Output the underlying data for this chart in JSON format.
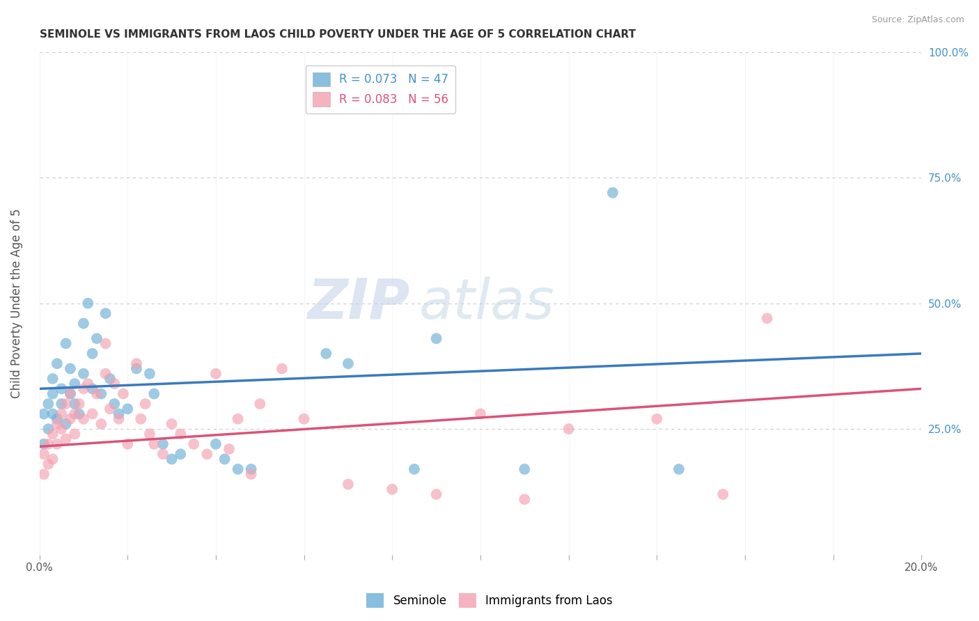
{
  "title": "SEMINOLE VS IMMIGRANTS FROM LAOS CHILD POVERTY UNDER THE AGE OF 5 CORRELATION CHART",
  "source": "Source: ZipAtlas.com",
  "ylabel": "Child Poverty Under the Age of 5",
  "xlim": [
    0.0,
    0.2
  ],
  "ylim": [
    0.0,
    1.0
  ],
  "xticks": [
    0.0,
    0.02,
    0.04,
    0.06,
    0.08,
    0.1,
    0.12,
    0.14,
    0.16,
    0.18,
    0.2
  ],
  "xticklabels": [
    "0.0%",
    "",
    "",
    "",
    "",
    "",
    "",
    "",
    "",
    "",
    "20.0%"
  ],
  "yticks_right": [
    0.0,
    0.25,
    0.5,
    0.75,
    1.0
  ],
  "yticklabels_right": [
    "",
    "25.0%",
    "50.0%",
    "75.0%",
    "100.0%"
  ],
  "seminole_R": 0.073,
  "seminole_N": 47,
  "laos_R": 0.083,
  "laos_N": 56,
  "seminole_color": "#6baed6",
  "laos_color": "#f4a0b0",
  "trend_seminole_color": "#3a7abf",
  "trend_laos_color": "#d9537a",
  "seminole_x": [
    0.001,
    0.001,
    0.002,
    0.002,
    0.003,
    0.003,
    0.003,
    0.004,
    0.004,
    0.005,
    0.005,
    0.006,
    0.006,
    0.007,
    0.007,
    0.008,
    0.008,
    0.009,
    0.01,
    0.01,
    0.011,
    0.012,
    0.012,
    0.013,
    0.014,
    0.015,
    0.016,
    0.017,
    0.018,
    0.02,
    0.022,
    0.025,
    0.026,
    0.028,
    0.03,
    0.032,
    0.04,
    0.042,
    0.045,
    0.048,
    0.065,
    0.07,
    0.085,
    0.09,
    0.11,
    0.13,
    0.145
  ],
  "seminole_y": [
    0.28,
    0.22,
    0.3,
    0.25,
    0.32,
    0.28,
    0.35,
    0.27,
    0.38,
    0.3,
    0.33,
    0.26,
    0.42,
    0.32,
    0.37,
    0.3,
    0.34,
    0.28,
    0.46,
    0.36,
    0.5,
    0.4,
    0.33,
    0.43,
    0.32,
    0.48,
    0.35,
    0.3,
    0.28,
    0.29,
    0.37,
    0.36,
    0.32,
    0.22,
    0.19,
    0.2,
    0.22,
    0.19,
    0.17,
    0.17,
    0.4,
    0.38,
    0.17,
    0.43,
    0.17,
    0.72,
    0.17
  ],
  "laos_x": [
    0.001,
    0.001,
    0.002,
    0.002,
    0.003,
    0.003,
    0.004,
    0.004,
    0.005,
    0.005,
    0.006,
    0.006,
    0.007,
    0.007,
    0.008,
    0.008,
    0.009,
    0.01,
    0.01,
    0.011,
    0.012,
    0.013,
    0.014,
    0.015,
    0.015,
    0.016,
    0.017,
    0.018,
    0.019,
    0.02,
    0.022,
    0.023,
    0.024,
    0.025,
    0.026,
    0.028,
    0.03,
    0.032,
    0.035,
    0.038,
    0.04,
    0.043,
    0.045,
    0.048,
    0.05,
    0.055,
    0.06,
    0.07,
    0.08,
    0.09,
    0.1,
    0.11,
    0.12,
    0.14,
    0.155,
    0.165
  ],
  "laos_y": [
    0.2,
    0.16,
    0.22,
    0.18,
    0.24,
    0.19,
    0.26,
    0.22,
    0.28,
    0.25,
    0.3,
    0.23,
    0.32,
    0.27,
    0.28,
    0.24,
    0.3,
    0.33,
    0.27,
    0.34,
    0.28,
    0.32,
    0.26,
    0.42,
    0.36,
    0.29,
    0.34,
    0.27,
    0.32,
    0.22,
    0.38,
    0.27,
    0.3,
    0.24,
    0.22,
    0.2,
    0.26,
    0.24,
    0.22,
    0.2,
    0.36,
    0.21,
    0.27,
    0.16,
    0.3,
    0.37,
    0.27,
    0.14,
    0.13,
    0.12,
    0.28,
    0.11,
    0.25,
    0.27,
    0.12,
    0.47
  ],
  "trend_seminole_x0": 0.0,
  "trend_seminole_y0": 0.33,
  "trend_seminole_x1": 0.2,
  "trend_seminole_y1": 0.4,
  "trend_laos_x0": 0.0,
  "trend_laos_y0": 0.215,
  "trend_laos_x1": 0.2,
  "trend_laos_y1": 0.33,
  "watermark_zip": "ZIP",
  "watermark_atlas": "atlas",
  "background_color": "#ffffff",
  "grid_color": "#cccccc"
}
